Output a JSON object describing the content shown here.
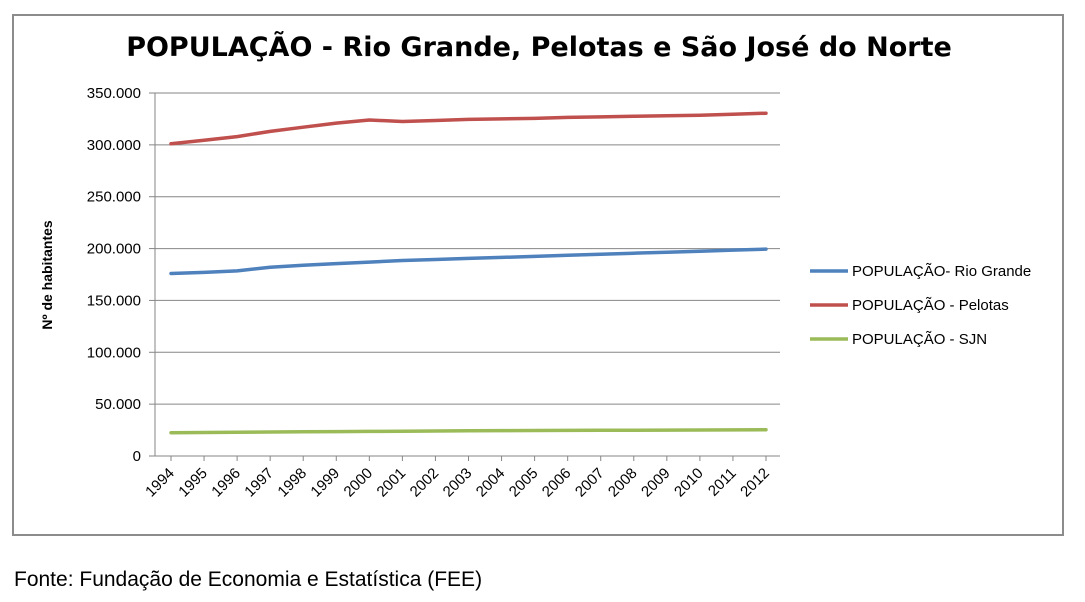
{
  "chart_data": {
    "type": "line",
    "title": "POPULAÇÃO -  Rio Grande, Pelotas e São José do Norte",
    "ylabel": "Nº de habitantes",
    "xlabel": "",
    "ylim": [
      0,
      350000
    ],
    "yticks": [
      "0",
      "50.000",
      "100.000",
      "150.000",
      "200.000",
      "250.000",
      "300.000",
      "350.000"
    ],
    "categories": [
      "1994",
      "1995",
      "1996",
      "1997",
      "1998",
      "1999",
      "2000",
      "2001",
      "2002",
      "2003",
      "2004",
      "2005",
      "2006",
      "2007",
      "2008",
      "2009",
      "2010",
      "2011",
      "2012"
    ],
    "grid": true,
    "legend": "right",
    "series": [
      {
        "name": "POPULAÇÃO- Rio Grande",
        "color": "#4f81bd",
        "values": [
          176000,
          177000,
          178500,
          182000,
          184000,
          185500,
          187000,
          188500,
          189500,
          190500,
          191500,
          192500,
          193500,
          194500,
          195500,
          196500,
          197500,
          198500,
          199500
        ]
      },
      {
        "name": "POPULAÇÃO - Pelotas",
        "color": "#c0504d",
        "values": [
          301000,
          304500,
          308000,
          313000,
          317000,
          321000,
          324000,
          322500,
          323500,
          324500,
          325000,
          325500,
          326500,
          327000,
          327500,
          328000,
          328500,
          329500,
          330500
        ]
      },
      {
        "name": "POPULAÇÃO - SJN",
        "color": "#9bbb59",
        "values": [
          22500,
          22700,
          22900,
          23100,
          23300,
          23500,
          23700,
          23900,
          24100,
          24300,
          24500,
          24600,
          24700,
          24800,
          24900,
          25000,
          25100,
          25200,
          25400
        ]
      }
    ]
  },
  "source": "Fonte: Fundação de Economia e Estatística (FEE)"
}
